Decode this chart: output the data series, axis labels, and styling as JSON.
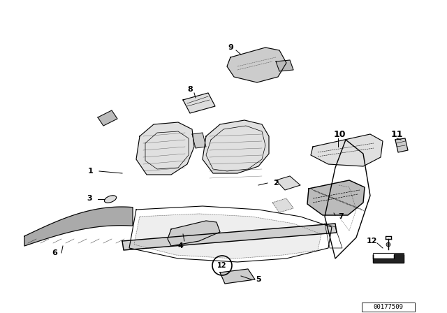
{
  "bg_color": "#ffffff",
  "line_color": "#000000",
  "fig_width": 6.4,
  "fig_height": 4.48,
  "dpi": 100,
  "part_id": "00177509"
}
